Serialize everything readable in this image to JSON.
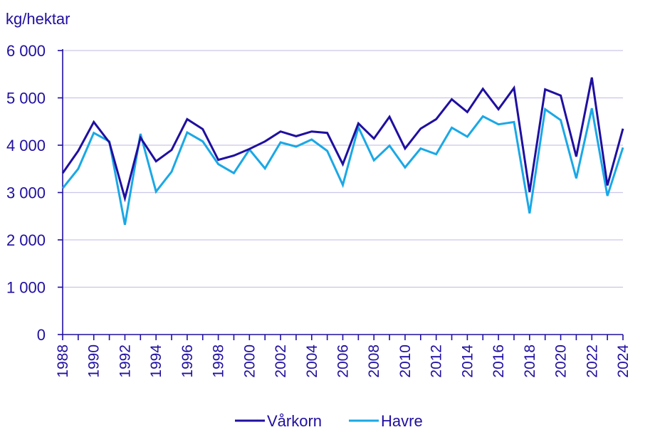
{
  "chart_data": {
    "type": "line",
    "ylabel": "kg/hektar",
    "ylim": [
      0,
      6000
    ],
    "yticks": [
      {
        "value": 0,
        "label": "0"
      },
      {
        "value": 1000,
        "label": "1 000"
      },
      {
        "value": 2000,
        "label": "2 000"
      },
      {
        "value": 3000,
        "label": "3 000"
      },
      {
        "value": 4000,
        "label": "4 000"
      },
      {
        "value": 5000,
        "label": "5 000"
      },
      {
        "value": 6000,
        "label": "6 000"
      }
    ],
    "x": [
      1988,
      1989,
      1990,
      1991,
      1992,
      1993,
      1994,
      1995,
      1996,
      1997,
      1998,
      1999,
      2000,
      2001,
      2002,
      2003,
      2004,
      2005,
      2006,
      2007,
      2008,
      2009,
      2010,
      2011,
      2012,
      2013,
      2014,
      2015,
      2016,
      2017,
      2018,
      2019,
      2020,
      2021,
      2022,
      2023,
      2024
    ],
    "xtick_labels": [
      "1988",
      "1990",
      "1992",
      "1994",
      "1996",
      "1998",
      "2000",
      "2002",
      "2004",
      "2006",
      "2008",
      "2010",
      "2012",
      "2014",
      "2016",
      "2018",
      "2020",
      "2022",
      "2024"
    ],
    "grid": true,
    "legend_position": "bottom",
    "series": [
      {
        "name": "Vårkorn",
        "color": "#1f0fa0",
        "values": [
          3410,
          3880,
          4490,
          4060,
          2880,
          4160,
          3660,
          3900,
          4550,
          4340,
          3690,
          3780,
          3920,
          4080,
          4290,
          4190,
          4290,
          4260,
          3600,
          4460,
          4140,
          4600,
          3930,
          4350,
          4550,
          4970,
          4700,
          5190,
          4760,
          5210,
          3010,
          5180,
          5050,
          3760,
          5430,
          3150,
          4350
        ]
      },
      {
        "name": "Havre",
        "color": "#1aa8e6",
        "values": [
          3090,
          3500,
          4260,
          4080,
          2320,
          4240,
          3020,
          3440,
          4270,
          4080,
          3600,
          3410,
          3910,
          3510,
          4060,
          3970,
          4120,
          3880,
          3160,
          4380,
          3680,
          3990,
          3530,
          3930,
          3810,
          4370,
          4180,
          4610,
          4440,
          4490,
          2560,
          4760,
          4530,
          3300,
          4780,
          2930,
          3950
        ]
      }
    ]
  }
}
